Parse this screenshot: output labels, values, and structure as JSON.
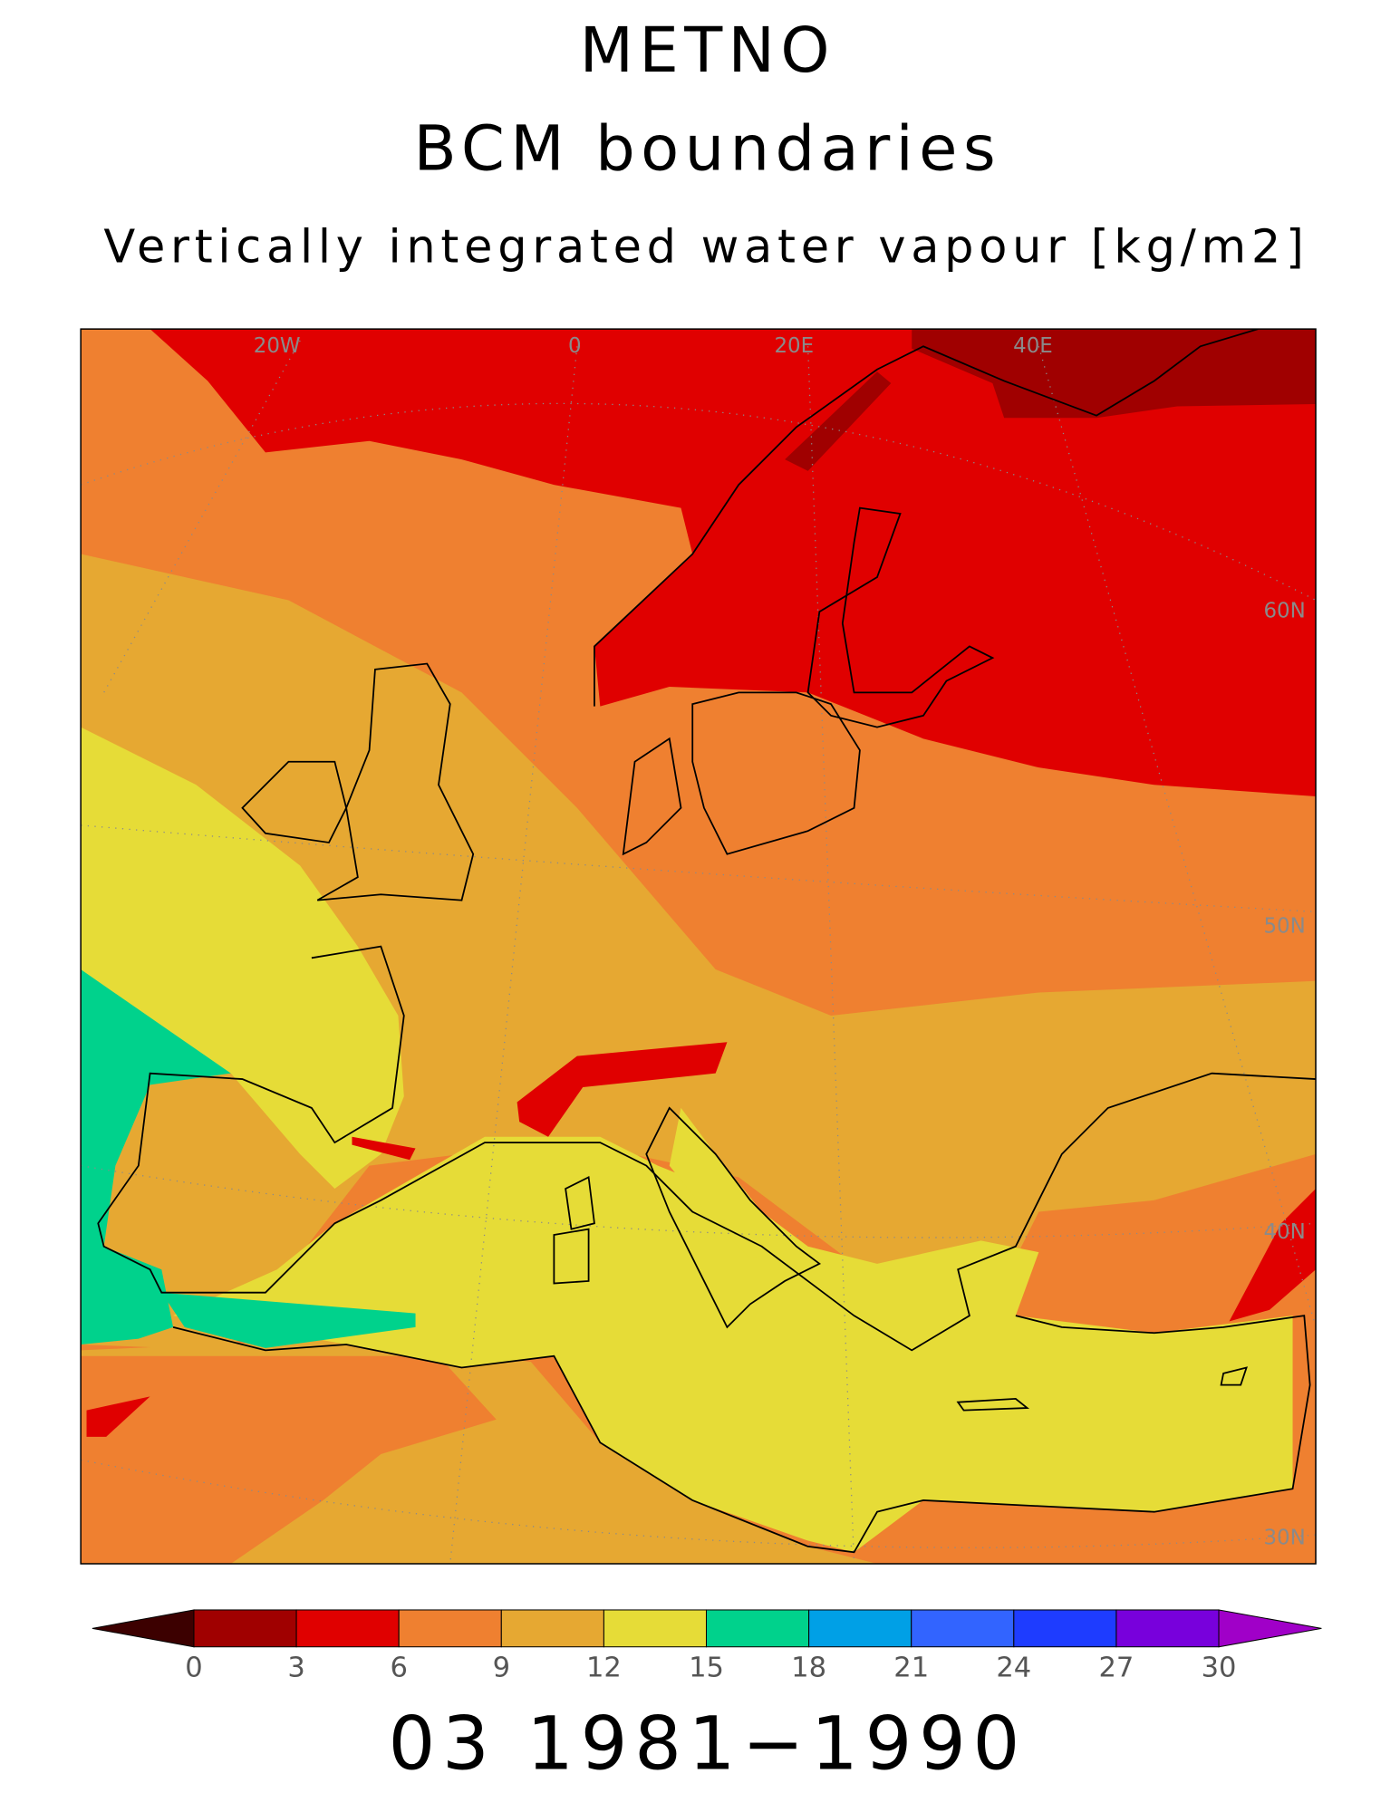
{
  "header": {
    "title": "METNO",
    "subtitle": "BCM boundaries",
    "variable": "Vertically integrated water vapour [kg/m2]"
  },
  "map": {
    "graticule_labels": [
      "20W",
      "0",
      "20E",
      "40E",
      "60N",
      "50N",
      "40N",
      "30N"
    ]
  },
  "colorbar": {
    "ticks": [
      0,
      3,
      6,
      9,
      12,
      15,
      18,
      21,
      24,
      27,
      30
    ],
    "colors": [
      "#3c0000",
      "#a00000",
      "#e00000",
      "#ef8030",
      "#e6a832",
      "#e6dc37",
      "#00d28c",
      "#00a0e6",
      "#3264ff",
      "#1e3cff",
      "#7800dc",
      "#a000c8"
    ]
  },
  "footer": {
    "period": "03 1981−1990"
  }
}
